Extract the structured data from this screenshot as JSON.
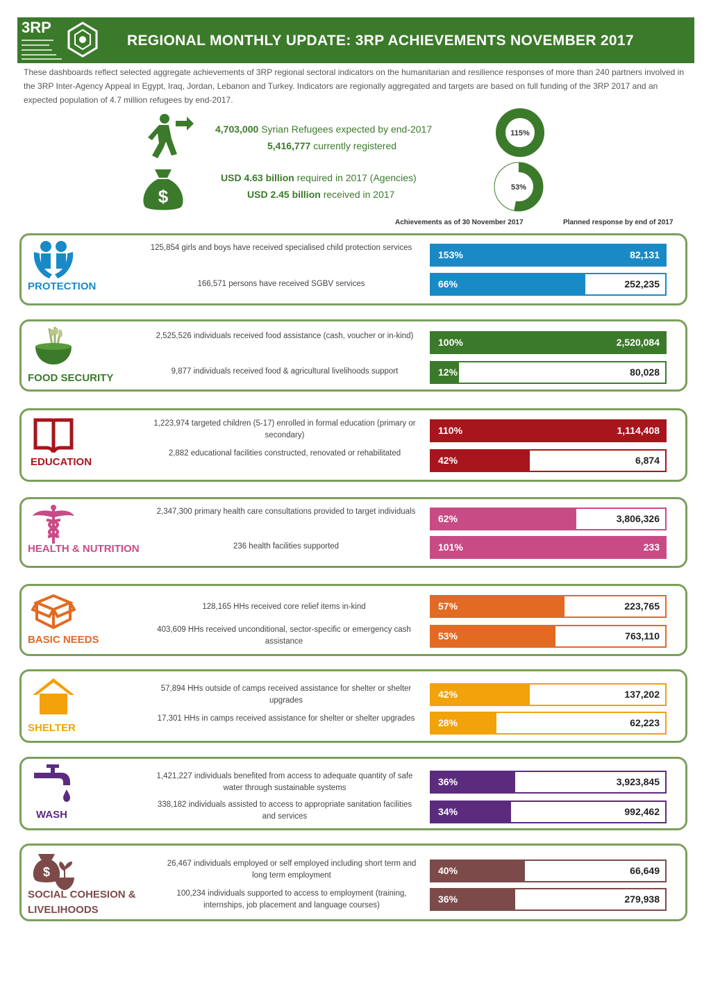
{
  "header": {
    "logo_text": "3RP",
    "title": "REGIONAL MONTHLY UPDATE: 3RP ACHIEVEMENTS NOVEMBER 2017"
  },
  "intro": "These dashboards reflect selected aggregate achievements of 3RP regional sectoral indicators on the humanitarian and resilience responses of more than 240 partners involved in the 3RP Inter-Agency Appeal in Egypt, Iraq, Jordan, Lebanon and Turkey. Indicators are regionally aggregated and targets are based on full funding of the 3RP 2017 and an expected population of 4.7 million refugees by end-2017.",
  "refugees": {
    "expected_value": "4,703,000",
    "expected_label": "Syrian Refugees expected by end-2017",
    "registered_value": "5,416,777",
    "registered_label": "currently registered",
    "donut_label": "115%",
    "donut_fraction": 1.0
  },
  "funding": {
    "required_value": "USD 4.63 billion",
    "required_label": "required in 2017 (Agencies)",
    "received_value": "USD 2.45 billion",
    "received_label": "received in 2017",
    "donut_label": "53%",
    "donut_fraction": 0.53
  },
  "columns": {
    "achievements": "Achievements as of 30 November 2017",
    "planned": "Planned response by end of 2017"
  },
  "colors": {
    "green": "#3b7a2a",
    "protection": "#1a8ac7",
    "food": "#3b7a2a",
    "education": "#a8151d",
    "health": "#c94b86",
    "basic": "#e26a22",
    "shelter": "#f2a20b",
    "wash": "#5b2c7e",
    "social": "#7d4a4a"
  },
  "sections": [
    {
      "name": "PROTECTION",
      "icon": "protection-hands-icon",
      "color": "#1a8ac7",
      "indicators": [
        {
          "text": "125,854 girls and boys have received specialised child protection services",
          "percent": "153%",
          "fill": 1.0,
          "target": "82,131"
        },
        {
          "text": "166,571 persons have received SGBV services",
          "percent": "66%",
          "fill": 0.66,
          "target": "252,235"
        }
      ]
    },
    {
      "name": "FOOD SECURITY",
      "icon": "food-bowl-icon",
      "color": "#3b7a2a",
      "indicators": [
        {
          "text": "2,525,526 individuals received food assistance (cash, voucher or in-kind)",
          "percent": "100%",
          "fill": 1.0,
          "target": "2,520,084"
        },
        {
          "text": "9,877 individuals received food & agricultural livelihoods support",
          "percent": "12%",
          "fill": 0.12,
          "target": "80,028"
        }
      ]
    },
    {
      "name": "EDUCATION",
      "icon": "open-book-icon",
      "color": "#a8151d",
      "indicators": [
        {
          "text": "1,223,974 targeted children (5-17) enrolled in formal education (primary or secondary)",
          "percent": "110%",
          "fill": 1.0,
          "target": "1,114,408"
        },
        {
          "text": "2,882 educational facilities constructed, renovated or rehabilitated",
          "percent": "42%",
          "fill": 0.42,
          "target": "6,874"
        }
      ]
    },
    {
      "name": "HEALTH & NUTRITION",
      "icon": "caduceus-icon",
      "color": "#c94b86",
      "indicators": [
        {
          "text": "2,347,300 primary health care consultations provided to target individuals",
          "percent": "62%",
          "fill": 0.62,
          "target": "3,806,326"
        },
        {
          "text": "236 health facilities supported",
          "percent": "101%",
          "fill": 1.0,
          "target": "233"
        }
      ]
    },
    {
      "name": "BASIC NEEDS",
      "icon": "box-icon",
      "color": "#e26a22",
      "indicators": [
        {
          "text": "128,165 HHs received core relief items in-kind",
          "percent": "57%",
          "fill": 0.57,
          "target": "223,765"
        },
        {
          "text": "403,609 HHs received unconditional, sector-specific or emergency cash assistance",
          "percent": "53%",
          "fill": 0.53,
          "target": "763,110"
        }
      ]
    },
    {
      "name": "SHELTER",
      "icon": "house-icon",
      "color": "#f2a20b",
      "indicators": [
        {
          "text": "57,894 HHs outside of camps received assistance for shelter or shelter upgrades",
          "percent": "42%",
          "fill": 0.42,
          "target": "137,202"
        },
        {
          "text": "17,301 HHs in camps received assistance for shelter or shelter upgrades",
          "percent": "28%",
          "fill": 0.28,
          "target": "62,223"
        }
      ]
    },
    {
      "name": "WASH",
      "icon": "water-tap-icon",
      "color": "#5b2c7e",
      "indicators": [
        {
          "text": "1,421,227 individuals benefited from access to adequate quantity of safe water through sustainable systems",
          "percent": "36%",
          "fill": 0.36,
          "target": "3,923,845"
        },
        {
          "text": "338,182 individuals assisted to access to appropriate sanitation facilities and services",
          "percent": "34%",
          "fill": 0.34,
          "target": "992,462"
        }
      ]
    },
    {
      "name": "SOCIAL COHESION & LIVELIHOODS",
      "icon": "money-bag-plant-icon",
      "color": "#7d4a4a",
      "indicators": [
        {
          "text": "26,467 individuals employed or self employed including short term and long term employment",
          "percent": "40%",
          "fill": 0.4,
          "target": "66,649"
        },
        {
          "text": "100,234 individuals supported to access to employment (training, internships, job placement and language courses)",
          "percent": "36%",
          "fill": 0.36,
          "target": "279,938"
        }
      ]
    }
  ]
}
